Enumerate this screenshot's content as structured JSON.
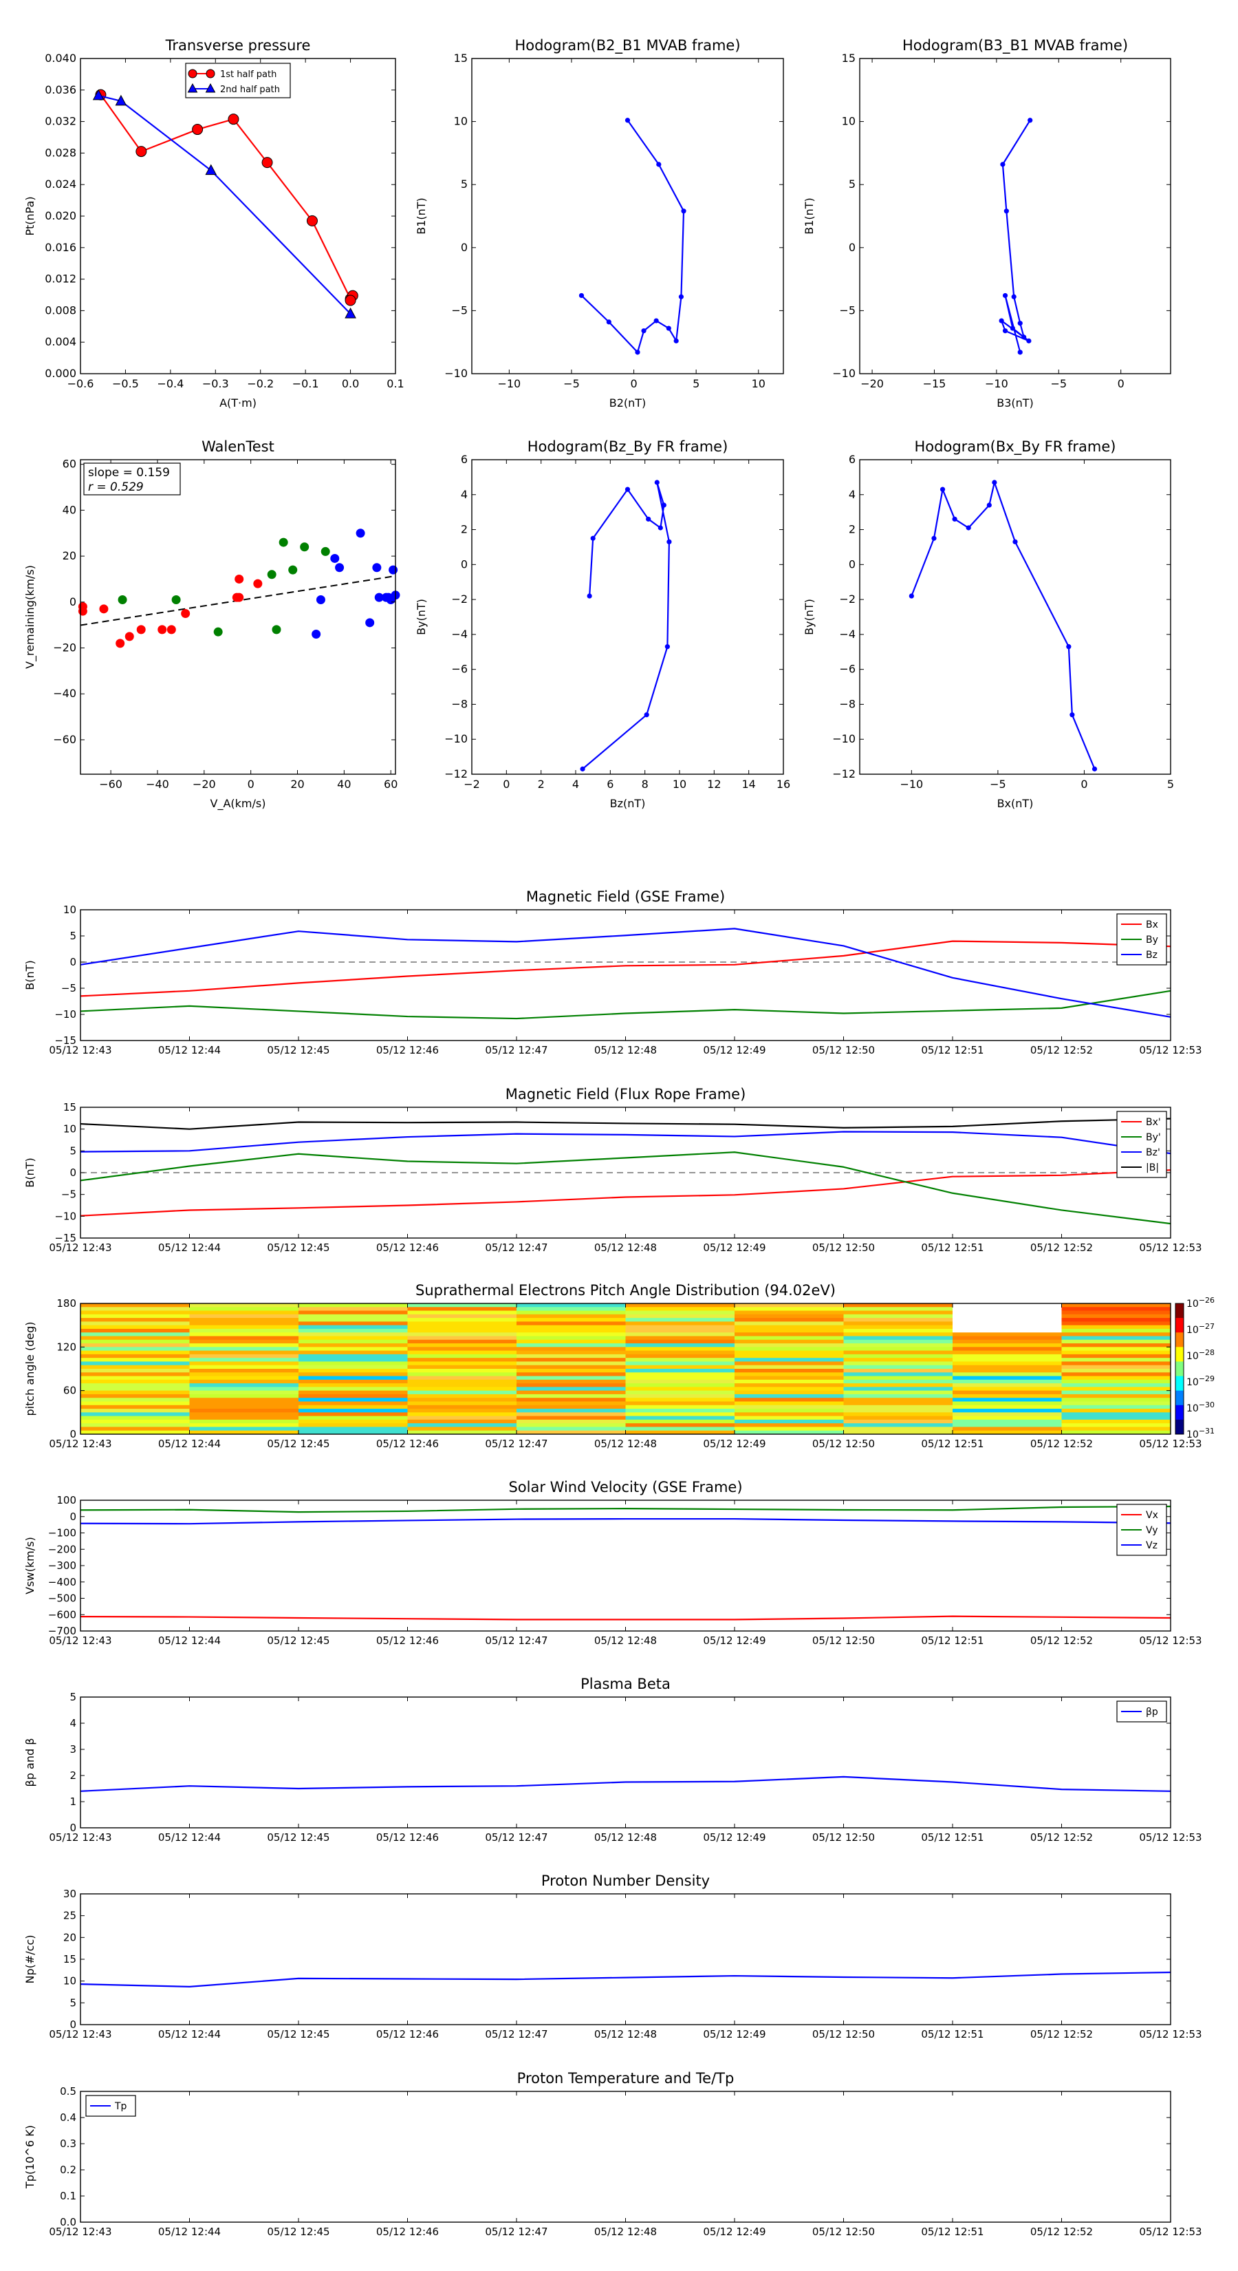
{
  "times": [
    "05/12 12:43",
    "05/12 12:44",
    "05/12 12:45",
    "05/12 12:46",
    "05/12 12:47",
    "05/12 12:48",
    "05/12 12:49",
    "05/12 12:50",
    "05/12 12:51",
    "05/12 12:52",
    "05/12 12:53"
  ],
  "colors": {
    "red": "#ff0000",
    "green": "#008000",
    "blue": "#0000ff",
    "black": "#000000",
    "gray": "#555555"
  },
  "chart_data": [
    {
      "type": "line",
      "title": "Transverse pressure",
      "xlabel": "A(T·m)",
      "ylabel": "Pt(nPa)",
      "xlim": [
        -0.6,
        0.1
      ],
      "ylim": [
        0.0,
        0.04
      ],
      "xticks": [
        "−0.6",
        "−0.5",
        "−0.4",
        "−0.3",
        "−0.2",
        "−0.1",
        "0.0",
        "0.1"
      ],
      "yticks": [
        "0.000",
        "0.004",
        "0.008",
        "0.012",
        "0.016",
        "0.020",
        "0.024",
        "0.028",
        "0.032",
        "0.036",
        "0.040"
      ],
      "legend_loc": "top",
      "series": [
        {
          "name": "1st half path",
          "color": "red",
          "marker": "circle",
          "x": [
            -0.555,
            -0.465,
            -0.34,
            -0.26,
            -0.185,
            -0.085,
            0.0,
            0.005,
            0.0
          ],
          "y": [
            0.0354,
            0.0282,
            0.031,
            0.0323,
            0.0268,
            0.0194,
            0.0095,
            0.0099,
            0.0093
          ]
        },
        {
          "name": "2nd half path",
          "color": "blue",
          "marker": "triangle",
          "x": [
            -0.56,
            -0.51,
            -0.31,
            0.0
          ],
          "y": [
            0.0353,
            0.0346,
            0.0258,
            0.0076
          ]
        }
      ]
    },
    {
      "type": "line",
      "title": "Hodogram(B2_B1 MVAB frame)",
      "xlabel": "B2(nT)",
      "ylabel": "B1(nT)",
      "xlim": [
        -13,
        12
      ],
      "ylim": [
        -10,
        15
      ],
      "xticks": [
        "−10",
        "−5",
        "0",
        "5",
        "10"
      ],
      "yticks": [
        "−10",
        "−5",
        "0",
        "5",
        "10",
        "15"
      ],
      "series": [
        {
          "color": "blue",
          "marker": "dot",
          "x": [
            -0.5,
            2.0,
            4.0,
            3.8,
            3.4,
            2.8,
            1.8,
            0.8,
            0.3,
            -2.0,
            -4.2
          ],
          "y": [
            10.1,
            6.6,
            2.9,
            -3.9,
            -7.4,
            -6.4,
            -5.8,
            -6.6,
            -8.3,
            -5.9,
            -3.8
          ]
        }
      ]
    },
    {
      "type": "line",
      "title": "Hodogram(B3_B1 MVAB frame)",
      "xlabel": "B3(nT)",
      "ylabel": "B1(nT)",
      "xlim": [
        -21,
        4
      ],
      "ylim": [
        -10,
        15
      ],
      "xticks": [
        "−20",
        "−15",
        "−10",
        "−5",
        "0"
      ],
      "yticks": [
        "−10",
        "−5",
        "0",
        "5",
        "10",
        "15"
      ],
      "series": [
        {
          "color": "blue",
          "marker": "dot",
          "x": [
            -7.3,
            -9.5,
            -9.2,
            -8.6,
            -8.1,
            -7.8,
            -9.6,
            -9.3,
            -7.4,
            -8.7,
            -9.3,
            -8.1
          ],
          "y": [
            10.1,
            6.6,
            2.9,
            -3.9,
            -6.0,
            -7.1,
            -5.8,
            -6.6,
            -7.4,
            -6.4,
            -3.8,
            -8.3
          ]
        }
      ]
    },
    {
      "type": "scatter",
      "title": "WalenTest",
      "xlabel": "V_A(km/s)",
      "ylabel": "V_remaining(km/s)",
      "xlim": [
        -73,
        62
      ],
      "ylim": [
        -75,
        62
      ],
      "xticks": [
        "−60",
        "−40",
        "−20",
        "0",
        "20",
        "40",
        "60"
      ],
      "yticks": [
        "−60",
        "−40",
        "−20",
        "0",
        "20",
        "40",
        "60"
      ],
      "annotation": {
        "slope": "slope = 0.159",
        "r": "r = 0.529"
      },
      "fit_line": {
        "slope": 0.159,
        "intercept": 1.5
      },
      "series": [
        {
          "color": "red",
          "x": [
            -72,
            -63,
            -56,
            -52,
            -47,
            -38,
            -34,
            -28,
            -6,
            -5,
            3,
            -72,
            -5
          ],
          "y": [
            -2,
            -3,
            -18,
            -15,
            -12,
            -12,
            -12,
            -5,
            2,
            10,
            8,
            -4,
            2
          ]
        },
        {
          "color": "green",
          "x": [
            -55,
            -32,
            -14,
            9,
            11,
            14,
            18,
            23,
            32
          ],
          "y": [
            1,
            1,
            -13,
            12,
            -12,
            26,
            14,
            24,
            22
          ]
        },
        {
          "color": "blue",
          "x": [
            47,
            36,
            38,
            28,
            30,
            51,
            54,
            55,
            58,
            60,
            61,
            62,
            59
          ],
          "y": [
            30,
            19,
            15,
            -14,
            1,
            -9,
            15,
            2,
            2,
            1,
            14,
            3,
            2
          ]
        }
      ]
    },
    {
      "type": "line",
      "title": "Hodogram(Bz_By FR frame)",
      "xlabel": "Bz(nT)",
      "ylabel": "By(nT)",
      "xlim": [
        -2,
        16
      ],
      "ylim": [
        -12,
        6
      ],
      "xticks": [
        "−2",
        "0",
        "2",
        "4",
        "6",
        "8",
        "10",
        "12",
        "14",
        "16"
      ],
      "yticks": [
        "−12",
        "−10",
        "−8",
        "−6",
        "−4",
        "−2",
        "0",
        "2",
        "4",
        "6"
      ],
      "series": [
        {
          "color": "blue",
          "marker": "dot",
          "x": [
            4.8,
            5.0,
            7.0,
            8.2,
            8.9,
            9.1,
            8.7,
            9.4,
            9.3,
            8.1,
            4.4
          ],
          "y": [
            -1.8,
            1.5,
            4.3,
            2.6,
            2.1,
            3.4,
            4.7,
            1.3,
            -4.7,
            -8.6,
            -11.7
          ]
        }
      ]
    },
    {
      "type": "line",
      "title": "Hodogram(Bx_By FR frame)",
      "xlabel": "Bx(nT)",
      "ylabel": "By(nT)",
      "xlim": [
        -13,
        5
      ],
      "ylim": [
        -12,
        6
      ],
      "xticks": [
        "−10",
        "−5",
        "0",
        "5"
      ],
      "yticks": [
        "−12",
        "−10",
        "−8",
        "−6",
        "−4",
        "−2",
        "0",
        "2",
        "4",
        "6"
      ],
      "series": [
        {
          "color": "blue",
          "marker": "dot",
          "x": [
            -10.0,
            -8.7,
            -8.2,
            -7.5,
            -6.7,
            -5.5,
            -5.2,
            -4.0,
            -0.9,
            -0.7,
            0.6
          ],
          "y": [
            -1.8,
            1.5,
            4.3,
            2.6,
            2.1,
            3.4,
            4.7,
            1.3,
            -4.7,
            -8.6,
            -11.7
          ]
        }
      ]
    },
    {
      "type": "line",
      "title": "Magnetic Field (GSE Frame)",
      "ylabel": "B(nT)",
      "ylim": [
        -15,
        10
      ],
      "yticks": [
        "−15",
        "−10",
        "−5",
        "0",
        "5",
        "10"
      ],
      "zero_line": true,
      "legend_loc": "top-right",
      "series": [
        {
          "name": "Bx",
          "color": "red",
          "values": [
            -6.5,
            -5.5,
            -4.0,
            -2.7,
            -1.6,
            -0.7,
            -0.5,
            1.2,
            4.0,
            3.7,
            3.0
          ]
        },
        {
          "name": "By",
          "color": "green",
          "values": [
            -9.4,
            -8.4,
            -9.4,
            -10.4,
            -10.8,
            -9.8,
            -9.1,
            -9.8,
            -9.3,
            -8.8,
            -5.5
          ]
        },
        {
          "name": "Bz",
          "color": "blue",
          "values": [
            -0.5,
            2.7,
            5.9,
            4.3,
            3.9,
            5.1,
            6.4,
            3.1,
            -3.0,
            -7.0,
            -10.5
          ]
        }
      ]
    },
    {
      "type": "line",
      "title": "Magnetic Field (Flux Rope Frame)",
      "ylabel": "B(nT)",
      "ylim": [
        -15,
        15
      ],
      "yticks": [
        "−15",
        "−10",
        "−5",
        "0",
        "5",
        "10",
        "15"
      ],
      "zero_line": true,
      "legend_loc": "top-right",
      "series": [
        {
          "name": "Bx'",
          "color": "red",
          "values": [
            -9.9,
            -8.6,
            -8.1,
            -7.5,
            -6.7,
            -5.6,
            -5.1,
            -3.7,
            -0.9,
            -0.6,
            0.6
          ]
        },
        {
          "name": "By'",
          "color": "green",
          "values": [
            -1.8,
            1.5,
            4.3,
            2.6,
            2.1,
            3.4,
            4.7,
            1.3,
            -4.7,
            -8.6,
            -11.7
          ]
        },
        {
          "name": "Bz'",
          "color": "blue",
          "values": [
            4.8,
            5.0,
            7.0,
            8.2,
            8.9,
            8.7,
            8.3,
            9.4,
            9.3,
            8.1,
            4.4
          ]
        },
        {
          "name": "|B|",
          "color": "black",
          "values": [
            11.2,
            10.0,
            11.6,
            11.5,
            11.6,
            11.3,
            11.1,
            10.3,
            10.6,
            11.8,
            12.4
          ]
        }
      ]
    },
    {
      "type": "heatmap",
      "title": "Suprathermal Electrons Pitch Angle Distribution (94.02eV)",
      "ylabel": "pitch angle (deg)",
      "ylim": [
        0,
        180
      ],
      "yticks": [
        "0",
        "60",
        "120",
        "180"
      ],
      "colorbar_ticks": [
        "10^-31",
        "10^-30",
        "10^-29",
        "10^-28",
        "10^-27",
        "10^-26"
      ],
      "columns": 10
    },
    {
      "type": "line",
      "title": "Solar Wind Velocity (GSE Frame)",
      "ylabel": "Vsw(km/s)",
      "ylim": [
        -700,
        100
      ],
      "yticks": [
        "−700",
        "−600",
        "−500",
        "−400",
        "−300",
        "−200",
        "−100",
        "0",
        "100"
      ],
      "legend_loc": "top-right",
      "series": [
        {
          "name": "Vx",
          "color": "red",
          "values": [
            -612,
            -614,
            -620,
            -625,
            -630,
            -630,
            -630,
            -622,
            -610,
            -615,
            -620
          ]
        },
        {
          "name": "Vy",
          "color": "green",
          "values": [
            40,
            42,
            28,
            33,
            46,
            49,
            45,
            41,
            40,
            58,
            62
          ]
        },
        {
          "name": "Vz",
          "color": "blue",
          "values": [
            -42,
            -44,
            -32,
            -24,
            -16,
            -14,
            -14,
            -22,
            -28,
            -32,
            -40
          ]
        }
      ]
    },
    {
      "type": "line",
      "title": "Plasma Beta",
      "ylabel": "βp and β",
      "ylim": [
        0,
        5
      ],
      "yticks": [
        "0",
        "1",
        "2",
        "3",
        "4",
        "5"
      ],
      "legend_loc": "top-right",
      "series": [
        {
          "name": "βp",
          "color": "blue",
          "values": [
            1.4,
            1.6,
            1.5,
            1.57,
            1.6,
            1.75,
            1.77,
            1.95,
            1.75,
            1.47,
            1.4
          ]
        }
      ]
    },
    {
      "type": "line",
      "title": "Proton Number Density",
      "ylabel": "Np(#/cc)",
      "ylim": [
        0,
        30
      ],
      "yticks": [
        "0",
        "5",
        "10",
        "15",
        "20",
        "25",
        "30"
      ],
      "series": [
        {
          "color": "blue",
          "values": [
            9.3,
            8.7,
            10.6,
            10.5,
            10.4,
            10.8,
            11.2,
            10.9,
            10.7,
            11.6,
            12.0
          ]
        }
      ]
    },
    {
      "type": "line",
      "title": "Proton Temperature and Te/Tp",
      "ylabel": "Tp(10^6 K)",
      "ylim": [
        0,
        0.5
      ],
      "yticks": [
        "0.0",
        "0.1",
        "0.2",
        "0.3",
        "0.4",
        "0.5"
      ],
      "legend_loc": "top-left",
      "series": [
        {
          "name": "Tp",
          "color": "blue",
          "values": []
        }
      ]
    }
  ]
}
